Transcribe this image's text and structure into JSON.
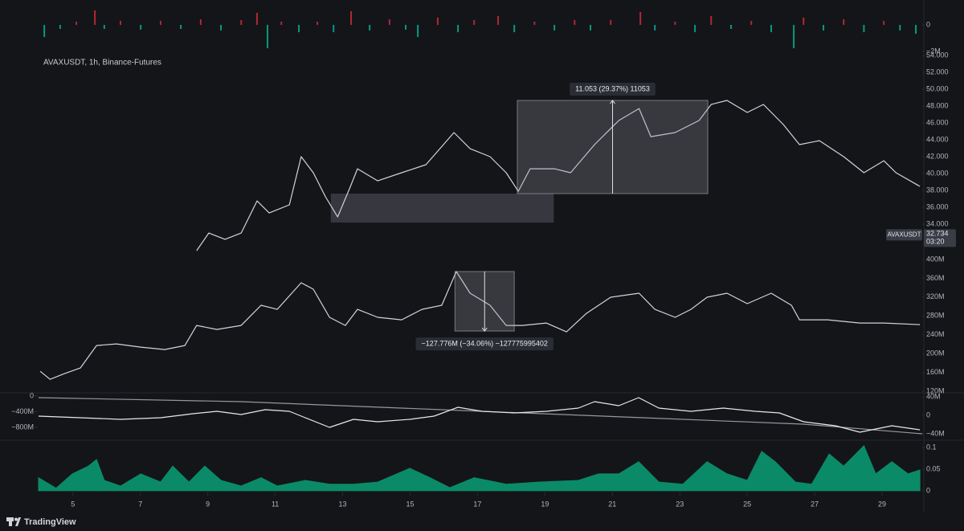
{
  "chart_data": [
    {
      "type": "bar",
      "x": [
        4.15,
        4.62,
        5.1,
        5.65,
        5.93,
        6.41,
        7.01,
        7.6,
        8.2,
        8.79,
        9.39,
        9.99,
        10.46,
        10.77,
        11.18,
        11.7,
        12.25,
        12.73,
        13.25,
        13.8,
        14.39,
        14.87,
        15.23,
        15.82,
        16.42,
        16.9,
        17.61,
        18.09,
        18.69,
        19.28,
        19.88,
        20.35,
        20.95,
        21.83,
        22.26,
        22.86,
        23.45,
        23.93,
        24.52,
        25.12,
        25.71,
        26.38,
        26.67,
        27.26,
        27.86,
        28.46,
        29.05,
        29.53,
        30.0
      ],
      "values": [
        -0.91,
        -0.3,
        0.24,
        1.09,
        -0.3,
        0.3,
        -0.36,
        0.3,
        -0.3,
        0.42,
        -0.42,
        0.36,
        0.91,
        -1.76,
        0.24,
        -0.55,
        0.24,
        -0.55,
        1.03,
        -0.42,
        0.42,
        -0.36,
        -0.91,
        0.55,
        -0.55,
        0.36,
        0.67,
        -0.55,
        0.24,
        -0.42,
        0.36,
        -0.42,
        0.36,
        0.97,
        -0.42,
        0.24,
        -0.55,
        0.67,
        -0.3,
        0.3,
        -0.55,
        -1.76,
        0.55,
        -0.42,
        0.42,
        -0.55,
        0.3,
        -0.42,
        -0.67
      ],
      "colors": {
        "positive": "#b22833",
        "negative": "#089981"
      },
      "xlim": [
        3.98,
        30.19
      ],
      "ylim": [
        -2.24,
        1.27
      ],
      "yticks": [
        0,
        {
          "value": -2,
          "label": "−2M"
        }
      ]
    },
    {
      "type": "line",
      "title": "AVAXUSDT, 1h, Binance-Futures",
      "x": [
        8.67,
        9.03,
        9.51,
        9.99,
        10.46,
        10.82,
        11.42,
        11.77,
        12.13,
        12.49,
        12.85,
        13.2,
        13.44,
        14.04,
        14.75,
        15.47,
        16.3,
        16.78,
        17.37,
        17.85,
        18.21,
        18.56,
        19.28,
        19.76,
        20.47,
        21.19,
        21.79,
        22.14,
        22.86,
        23.57,
        23.93,
        24.4,
        25.0,
        25.48,
        26.07,
        26.55,
        27.14,
        27.86,
        28.46,
        29.05,
        29.41,
        30.12
      ],
      "values": [
        30.86,
        32.95,
        32.2,
        32.95,
        36.76,
        35.33,
        36.29,
        42.0,
        40.1,
        37.24,
        34.86,
        38.19,
        40.57,
        39.14,
        40.1,
        41.05,
        44.86,
        42.95,
        42.0,
        40.1,
        37.9,
        40.57,
        40.57,
        40.1,
        43.43,
        46.29,
        47.71,
        44.38,
        44.86,
        46.29,
        48.19,
        48.67,
        47.24,
        48.19,
        45.81,
        43.43,
        43.9,
        42.0,
        40.1,
        41.52,
        40.1,
        38.48
      ],
      "color": "#d1d4dc",
      "xlim": [
        3.98,
        30.19
      ],
      "ylim": [
        30.1,
        54.67
      ],
      "yticks": [
        {
          "value": 34,
          "label": "34.000"
        },
        {
          "value": 36,
          "label": "36.000"
        },
        {
          "value": 38,
          "label": "38.000"
        },
        {
          "value": 40,
          "label": "40.000"
        },
        {
          "value": 42,
          "label": "42.000"
        },
        {
          "value": 44,
          "label": "44.000"
        },
        {
          "value": 46,
          "label": "46.000"
        },
        {
          "value": 48,
          "label": "48.000"
        },
        {
          "value": 50,
          "label": "50.000"
        },
        {
          "value": 52,
          "label": "52.000"
        },
        {
          "value": 54,
          "label": "54.000"
        }
      ],
      "rectangles": [
        {
          "x": [
            12.65,
            19.26
          ],
          "y": [
            34.19,
            37.62
          ]
        }
      ],
      "measure": {
        "x": [
          18.18,
          23.83
        ],
        "y": [
          37.62,
          48.67
        ],
        "label": "11.053 (29.37%) 11053"
      },
      "last_price": {
        "symbol": "AVAXUSDT",
        "value": 32.734,
        "countdown": "03:20"
      }
    },
    {
      "type": "line",
      "x": [
        4.03,
        4.32,
        4.74,
        5.22,
        5.7,
        6.29,
        7.01,
        7.72,
        8.32,
        8.67,
        9.27,
        9.99,
        10.58,
        11.06,
        11.77,
        12.13,
        12.61,
        13.08,
        13.44,
        14.04,
        14.75,
        15.35,
        15.94,
        16.37,
        16.78,
        17.37,
        17.85,
        18.33,
        19.04,
        19.64,
        20.23,
        20.95,
        21.79,
        22.26,
        22.86,
        23.33,
        23.81,
        24.4,
        25.0,
        25.71,
        26.31,
        26.55,
        27.38,
        28.34,
        29.05,
        30.12
      ],
      "values": [
        162.4,
        145.3,
        157.3,
        169.3,
        217.1,
        220.5,
        213.7,
        208.6,
        217.1,
        259.9,
        251.3,
        259.9,
        302.6,
        294.0,
        350.4,
        336.8,
        277.0,
        259.9,
        294.0,
        277.0,
        271.8,
        294.0,
        302.6,
        374.4,
        328.2,
        302.6,
        259.9,
        259.9,
        265.0,
        246.2,
        285.5,
        319.7,
        328.2,
        294.0,
        277.0,
        294.0,
        319.7,
        328.2,
        306.0,
        328.2,
        302.6,
        271.8,
        271.8,
        265.0,
        265.0,
        261.6
      ],
      "color": "#d1d4dc",
      "xlim": [
        3.98,
        30.19
      ],
      "ylim": [
        118.3,
        408.5
      ],
      "yticks": [
        {
          "value": 120,
          "label": "120M"
        },
        {
          "value": 160,
          "label": "160M"
        },
        {
          "value": 200,
          "label": "200M"
        },
        {
          "value": 240,
          "label": "240M"
        },
        {
          "value": 280,
          "label": "280M"
        },
        {
          "value": 320,
          "label": "320M"
        },
        {
          "value": 360,
          "label": "360M"
        },
        {
          "value": 400,
          "label": "400M"
        }
      ],
      "measure": {
        "x": [
          16.33,
          18.09
        ],
        "y": [
          374.4,
          247.9
        ],
        "label": "−127.776M (−34.06%) −127775995402"
      }
    },
    {
      "type": "line",
      "series": [
        {
          "color": "#9598a1",
          "x": [
            3.98,
            9.99,
            15.94,
            21.91,
            26.67,
            30.19
          ],
          "values": [
            -41,
            -144,
            -349,
            -554,
            -718,
            -964
          ]
        },
        {
          "color": "#e8e8e8",
          "axis": "y2",
          "x": [
            3.98,
            5.22,
            6.41,
            7.6,
            8.56,
            9.27,
            9.99,
            10.7,
            11.42,
            11.89,
            12.61,
            13.32,
            14.04,
            14.99,
            15.71,
            16.42,
            17.14,
            18.09,
            19.04,
            19.99,
            20.47,
            21.19,
            21.78,
            22.38,
            23.33,
            24.29,
            25.24,
            25.95,
            26.67,
            27.62,
            28.34,
            29.29,
            30.12
          ],
          "values": [
            -1.7,
            -5.2,
            -8.7,
            -5.2,
            3.5,
            8.7,
            1.7,
            12.2,
            8.7,
            -5.2,
            -26.1,
            -8.7,
            -13.9,
            -8.7,
            -1.7,
            17.4,
            8.7,
            5.2,
            8.7,
            15.7,
            29.6,
            20.9,
            38.3,
            15.7,
            8.7,
            15.7,
            8.7,
            5.2,
            -13.9,
            -22.6,
            -36.5,
            -22.6,
            -31.3
          ]
        }
      ],
      "xlim": [
        3.98,
        30.19
      ],
      "ylim": [
        -1066.7,
        61.5
      ],
      "yticks": [
        0,
        {
          "value": -400,
          "label": "−400M"
        },
        {
          "value": -800,
          "label": "−800M"
        }
      ],
      "y2lim": [
        -48.7,
        47
      ],
      "y2ticks": [
        {
          "value": 40,
          "label": "40M"
        },
        0,
        {
          "value": -40,
          "label": "−40M"
        }
      ]
    },
    {
      "type": "area",
      "x": [
        3.98,
        4.5,
        4.98,
        5.46,
        5.7,
        5.93,
        6.41,
        7.01,
        7.6,
        7.96,
        8.44,
        8.91,
        9.39,
        9.99,
        10.58,
        11.06,
        11.89,
        12.61,
        13.32,
        14.04,
        14.99,
        15.59,
        16.18,
        16.9,
        17.85,
        18.8,
        19.99,
        20.59,
        21.19,
        21.78,
        22.38,
        23.09,
        23.81,
        24.4,
        25.0,
        25.43,
        25.83,
        26.43,
        26.91,
        27.43,
        27.86,
        28.46,
        28.81,
        29.29,
        29.77,
        30.12
      ],
      "values": [
        0.03,
        0.006,
        0.039,
        0.057,
        0.072,
        0.024,
        0.011,
        0.039,
        0.02,
        0.057,
        0.02,
        0.057,
        0.024,
        0.011,
        0.03,
        0.011,
        0.024,
        0.015,
        0.015,
        0.02,
        0.052,
        0.03,
        0.007,
        0.03,
        0.015,
        0.02,
        0.024,
        0.039,
        0.039,
        0.067,
        0.02,
        0.015,
        0.067,
        0.039,
        0.024,
        0.091,
        0.067,
        0.02,
        0.015,
        0.085,
        0.057,
        0.104,
        0.039,
        0.067,
        0.039,
        0.048
      ],
      "color": "#0b8a68",
      "xlim": [
        3.98,
        30.19
      ],
      "ylim": [
        -0.002,
        0.113
      ],
      "yticks": [
        0,
        0.05,
        0.1
      ],
      "xticks": [
        5,
        7,
        9,
        11,
        13,
        15,
        17,
        19,
        21,
        23,
        25,
        27,
        29
      ]
    }
  ],
  "footer": "TradingView"
}
